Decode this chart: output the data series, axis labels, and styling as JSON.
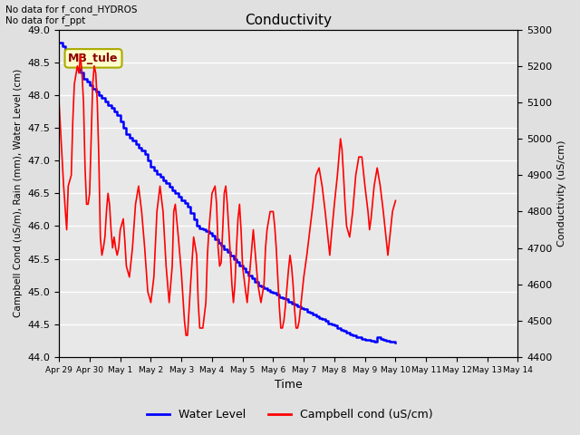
{
  "title": "Conductivity",
  "top_left_text": "No data for f_cond_HYDROS\nNo data for f_ppt",
  "legend_box_label": "MB_tule",
  "xlabel": "Time",
  "ylabel_left": "Campbell Cond (uS/m), Rain (mm), Water Level (cm)",
  "ylabel_right": "Conductivity (uS/cm)",
  "ylim_left": [
    44.0,
    49.0
  ],
  "ylim_right": [
    4400,
    5300
  ],
  "yticks_left": [
    44.0,
    44.5,
    45.0,
    45.5,
    46.0,
    46.5,
    47.0,
    47.5,
    48.0,
    48.5,
    49.0
  ],
  "yticks_right": [
    4400,
    4500,
    4600,
    4700,
    4800,
    4900,
    5000,
    5100,
    5200,
    5300
  ],
  "background_color": "#e0e0e0",
  "plot_bg_color": "#e8e8e8",
  "grid_color": "white",
  "water_level_color": "blue",
  "campbell_cond_color": "red",
  "legend_box_color": "#ffffcc",
  "legend_box_edge_color": "#aaaa00",
  "water_level_data": [
    [
      0.0,
      48.8
    ],
    [
      0.1,
      48.75
    ],
    [
      0.2,
      48.65
    ],
    [
      0.3,
      48.55
    ],
    [
      0.4,
      48.5
    ],
    [
      0.5,
      48.45
    ],
    [
      0.6,
      48.4
    ],
    [
      0.7,
      48.35
    ],
    [
      0.8,
      48.25
    ],
    [
      0.9,
      48.2
    ],
    [
      1.0,
      48.15
    ],
    [
      1.1,
      48.1
    ],
    [
      1.2,
      48.05
    ],
    [
      1.3,
      48.0
    ],
    [
      1.4,
      47.95
    ],
    [
      1.5,
      47.9
    ],
    [
      1.6,
      47.85
    ],
    [
      1.7,
      47.8
    ],
    [
      1.8,
      47.75
    ],
    [
      1.9,
      47.7
    ],
    [
      2.0,
      47.6
    ],
    [
      2.1,
      47.5
    ],
    [
      2.2,
      47.4
    ],
    [
      2.3,
      47.35
    ],
    [
      2.4,
      47.3
    ],
    [
      2.5,
      47.25
    ],
    [
      2.6,
      47.2
    ],
    [
      2.7,
      47.15
    ],
    [
      2.8,
      47.1
    ],
    [
      2.9,
      47.0
    ],
    [
      3.0,
      46.9
    ],
    [
      3.1,
      46.85
    ],
    [
      3.2,
      46.8
    ],
    [
      3.3,
      46.75
    ],
    [
      3.4,
      46.7
    ],
    [
      3.5,
      46.65
    ],
    [
      3.6,
      46.6
    ],
    [
      3.7,
      46.55
    ],
    [
      3.8,
      46.5
    ],
    [
      3.9,
      46.45
    ],
    [
      4.0,
      46.4
    ],
    [
      4.1,
      46.35
    ],
    [
      4.2,
      46.3
    ],
    [
      4.3,
      46.2
    ],
    [
      4.4,
      46.1
    ],
    [
      4.5,
      46.0
    ],
    [
      4.6,
      45.97
    ],
    [
      4.7,
      45.95
    ],
    [
      4.8,
      45.92
    ],
    [
      4.9,
      45.9
    ],
    [
      5.0,
      45.85
    ],
    [
      5.1,
      45.8
    ],
    [
      5.2,
      45.75
    ],
    [
      5.3,
      45.7
    ],
    [
      5.4,
      45.65
    ],
    [
      5.5,
      45.6
    ],
    [
      5.6,
      45.55
    ],
    [
      5.7,
      45.5
    ],
    [
      5.8,
      45.45
    ],
    [
      5.9,
      45.4
    ],
    [
      6.0,
      45.35
    ],
    [
      6.1,
      45.3
    ],
    [
      6.2,
      45.25
    ],
    [
      6.3,
      45.2
    ],
    [
      6.4,
      45.15
    ],
    [
      6.5,
      45.1
    ],
    [
      6.6,
      45.08
    ],
    [
      6.7,
      45.05
    ],
    [
      6.8,
      45.02
    ],
    [
      6.9,
      45.0
    ],
    [
      7.0,
      44.98
    ],
    [
      7.1,
      44.95
    ],
    [
      7.2,
      44.92
    ],
    [
      7.3,
      44.9
    ],
    [
      7.4,
      44.88
    ],
    [
      7.5,
      44.85
    ],
    [
      7.6,
      44.82
    ],
    [
      7.7,
      44.8
    ],
    [
      7.8,
      44.78
    ],
    [
      7.9,
      44.75
    ],
    [
      8.0,
      44.73
    ],
    [
      8.1,
      44.7
    ],
    [
      8.2,
      44.68
    ],
    [
      8.3,
      44.65
    ],
    [
      8.4,
      44.62
    ],
    [
      8.5,
      44.6
    ],
    [
      8.6,
      44.58
    ],
    [
      8.7,
      44.55
    ],
    [
      8.8,
      44.52
    ],
    [
      8.9,
      44.5
    ],
    [
      9.0,
      44.48
    ],
    [
      9.1,
      44.45
    ],
    [
      9.2,
      44.42
    ],
    [
      9.3,
      44.4
    ],
    [
      9.4,
      44.38
    ],
    [
      9.5,
      44.35
    ],
    [
      9.6,
      44.33
    ],
    [
      9.7,
      44.31
    ],
    [
      9.8,
      44.3
    ],
    [
      9.9,
      44.28
    ],
    [
      10.0,
      44.27
    ],
    [
      10.1,
      44.26
    ],
    [
      10.2,
      44.25
    ],
    [
      10.3,
      44.24
    ],
    [
      10.4,
      44.3
    ],
    [
      10.5,
      44.28
    ],
    [
      10.6,
      44.26
    ],
    [
      10.7,
      44.25
    ],
    [
      10.8,
      44.24
    ],
    [
      10.9,
      44.23
    ],
    [
      11.0,
      44.22
    ]
  ],
  "campbell_cond_data": [
    [
      0.0,
      5100
    ],
    [
      0.15,
      4870
    ],
    [
      0.25,
      4750
    ],
    [
      0.3,
      4870
    ],
    [
      0.4,
      4900
    ],
    [
      0.45,
      5050
    ],
    [
      0.5,
      5150
    ],
    [
      0.6,
      5200
    ],
    [
      0.65,
      5180
    ],
    [
      0.7,
      5230
    ],
    [
      0.75,
      5180
    ],
    [
      0.8,
      5100
    ],
    [
      0.85,
      4920
    ],
    [
      0.9,
      4820
    ],
    [
      0.95,
      4820
    ],
    [
      1.0,
      4850
    ],
    [
      1.05,
      5000
    ],
    [
      1.1,
      5150
    ],
    [
      1.15,
      5200
    ],
    [
      1.2,
      5180
    ],
    [
      1.25,
      5100
    ],
    [
      1.3,
      4950
    ],
    [
      1.35,
      4730
    ],
    [
      1.4,
      4680
    ],
    [
      1.45,
      4700
    ],
    [
      1.5,
      4730
    ],
    [
      1.55,
      4800
    ],
    [
      1.6,
      4850
    ],
    [
      1.65,
      4820
    ],
    [
      1.7,
      4750
    ],
    [
      1.75,
      4700
    ],
    [
      1.8,
      4730
    ],
    [
      1.85,
      4700
    ],
    [
      1.9,
      4680
    ],
    [
      1.95,
      4700
    ],
    [
      2.0,
      4750
    ],
    [
      2.1,
      4780
    ],
    [
      2.15,
      4720
    ],
    [
      2.2,
      4650
    ],
    [
      2.3,
      4620
    ],
    [
      2.4,
      4700
    ],
    [
      2.5,
      4820
    ],
    [
      2.6,
      4870
    ],
    [
      2.7,
      4800
    ],
    [
      2.8,
      4700
    ],
    [
      2.9,
      4580
    ],
    [
      3.0,
      4550
    ],
    [
      3.1,
      4620
    ],
    [
      3.2,
      4800
    ],
    [
      3.3,
      4870
    ],
    [
      3.4,
      4800
    ],
    [
      3.5,
      4650
    ],
    [
      3.6,
      4550
    ],
    [
      3.7,
      4650
    ],
    [
      3.75,
      4800
    ],
    [
      3.8,
      4820
    ],
    [
      3.9,
      4730
    ],
    [
      4.0,
      4630
    ],
    [
      4.1,
      4500
    ],
    [
      4.15,
      4460
    ],
    [
      4.2,
      4460
    ],
    [
      4.3,
      4600
    ],
    [
      4.4,
      4730
    ],
    [
      4.5,
      4680
    ],
    [
      4.55,
      4550
    ],
    [
      4.6,
      4480
    ],
    [
      4.7,
      4480
    ],
    [
      4.8,
      4550
    ],
    [
      4.85,
      4680
    ],
    [
      4.9,
      4750
    ],
    [
      5.0,
      4850
    ],
    [
      5.1,
      4870
    ],
    [
      5.15,
      4820
    ],
    [
      5.2,
      4700
    ],
    [
      5.25,
      4650
    ],
    [
      5.3,
      4660
    ],
    [
      5.35,
      4750
    ],
    [
      5.4,
      4850
    ],
    [
      5.45,
      4870
    ],
    [
      5.5,
      4820
    ],
    [
      5.55,
      4750
    ],
    [
      5.6,
      4680
    ],
    [
      5.65,
      4600
    ],
    [
      5.7,
      4550
    ],
    [
      5.75,
      4600
    ],
    [
      5.8,
      4700
    ],
    [
      5.85,
      4780
    ],
    [
      5.9,
      4820
    ],
    [
      5.95,
      4750
    ],
    [
      6.0,
      4650
    ],
    [
      6.1,
      4580
    ],
    [
      6.15,
      4550
    ],
    [
      6.2,
      4600
    ],
    [
      6.3,
      4700
    ],
    [
      6.35,
      4750
    ],
    [
      6.4,
      4700
    ],
    [
      6.5,
      4600
    ],
    [
      6.6,
      4550
    ],
    [
      6.7,
      4600
    ],
    [
      6.75,
      4700
    ],
    [
      6.8,
      4750
    ],
    [
      6.9,
      4800
    ],
    [
      7.0,
      4800
    ],
    [
      7.05,
      4760
    ],
    [
      7.1,
      4700
    ],
    [
      7.15,
      4620
    ],
    [
      7.2,
      4540
    ],
    [
      7.25,
      4480
    ],
    [
      7.3,
      4480
    ],
    [
      7.35,
      4500
    ],
    [
      7.4,
      4540
    ],
    [
      7.45,
      4590
    ],
    [
      7.5,
      4640
    ],
    [
      7.55,
      4680
    ],
    [
      7.6,
      4650
    ],
    [
      7.65,
      4600
    ],
    [
      7.7,
      4530
    ],
    [
      7.75,
      4480
    ],
    [
      7.8,
      4480
    ],
    [
      7.85,
      4500
    ],
    [
      7.9,
      4540
    ],
    [
      7.95,
      4580
    ],
    [
      8.0,
      4620
    ],
    [
      8.1,
      4680
    ],
    [
      8.2,
      4750
    ],
    [
      8.3,
      4820
    ],
    [
      8.4,
      4900
    ],
    [
      8.5,
      4920
    ],
    [
      8.6,
      4870
    ],
    [
      8.7,
      4800
    ],
    [
      8.8,
      4720
    ],
    [
      8.85,
      4680
    ],
    [
      8.9,
      4730
    ],
    [
      9.0,
      4820
    ],
    [
      9.1,
      4900
    ],
    [
      9.15,
      4950
    ],
    [
      9.2,
      5000
    ],
    [
      9.25,
      4970
    ],
    [
      9.3,
      4900
    ],
    [
      9.35,
      4820
    ],
    [
      9.4,
      4760
    ],
    [
      9.5,
      4730
    ],
    [
      9.6,
      4800
    ],
    [
      9.7,
      4900
    ],
    [
      9.8,
      4950
    ],
    [
      9.9,
      4950
    ],
    [
      10.0,
      4870
    ],
    [
      10.1,
      4800
    ],
    [
      10.15,
      4750
    ],
    [
      10.2,
      4780
    ],
    [
      10.3,
      4870
    ],
    [
      10.4,
      4920
    ],
    [
      10.5,
      4870
    ],
    [
      10.6,
      4800
    ],
    [
      10.7,
      4720
    ],
    [
      10.75,
      4680
    ],
    [
      10.8,
      4720
    ],
    [
      10.9,
      4800
    ],
    [
      11.0,
      4830
    ]
  ],
  "x_tick_labels": [
    "Apr 29",
    "Apr 30",
    "May 1",
    "May 2",
    "May 3",
    "May 4",
    "May 5",
    "May 6",
    "May 7",
    "May 8",
    "May 9",
    "May 10",
    "May 11",
    "May 12",
    "May 13",
    "May 14"
  ],
  "x_tick_positions": [
    0,
    1,
    2,
    3,
    4,
    5,
    6,
    7,
    8,
    9,
    10,
    11,
    12,
    13,
    14,
    15
  ],
  "figsize": [
    6.4,
    4.8
  ],
  "dpi": 100
}
